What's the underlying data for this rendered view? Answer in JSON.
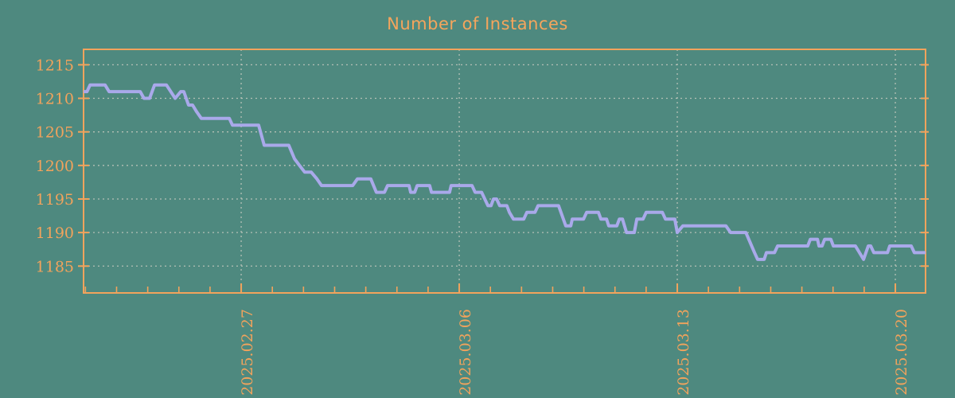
{
  "window": {
    "title": "Number of Instances"
  },
  "colors": {
    "background": "#4E897F",
    "accent_orange": "#F2A35C",
    "title_orange": "#F5A55C",
    "series_line": "#A9A9EA",
    "gridline": "#C6CABF"
  },
  "chart_data": {
    "type": "line",
    "title": "Number of Instances",
    "xlabel": "",
    "ylabel": "",
    "x_unit": "days relative to 2025.02.27 tick",
    "xlim": [
      -5.06,
      21.97
    ],
    "ylim": [
      1181.0,
      1217.3
    ],
    "grid": true,
    "legend_position": "none",
    "y_ticks": [
      1185,
      1190,
      1195,
      1200,
      1205,
      1210,
      1215
    ],
    "x_major_ticks": [
      {
        "day": 0,
        "label": "2025.02.27"
      },
      {
        "day": 7,
        "label": "2025.03.06"
      },
      {
        "day": 14,
        "label": "2025.03.13"
      },
      {
        "day": 21,
        "label": "2025.03.20"
      }
    ],
    "x_minor_tick_every_days": 1,
    "series": [
      {
        "name": "instances",
        "points": [
          [
            -5.06,
            1211
          ],
          [
            -4.95,
            1211
          ],
          [
            -4.85,
            1212
          ],
          [
            -4.37,
            1212
          ],
          [
            -4.24,
            1211
          ],
          [
            -3.24,
            1211
          ],
          [
            -3.12,
            1210
          ],
          [
            -2.94,
            1210
          ],
          [
            -2.78,
            1212
          ],
          [
            -2.4,
            1212
          ],
          [
            -2.12,
            1210
          ],
          [
            -1.94,
            1211
          ],
          [
            -1.84,
            1211
          ],
          [
            -1.69,
            1209
          ],
          [
            -1.56,
            1209
          ],
          [
            -1.43,
            1208
          ],
          [
            -1.28,
            1207
          ],
          [
            -0.38,
            1207
          ],
          [
            -0.28,
            1206
          ],
          [
            0.56,
            1206
          ],
          [
            0.74,
            1203
          ],
          [
            1.53,
            1203
          ],
          [
            1.71,
            1201
          ],
          [
            1.87,
            1200
          ],
          [
            2.04,
            1199
          ],
          [
            2.25,
            1199
          ],
          [
            2.43,
            1198
          ],
          [
            2.58,
            1197
          ],
          [
            3.58,
            1197
          ],
          [
            3.73,
            1198
          ],
          [
            4.16,
            1198
          ],
          [
            4.34,
            1196
          ],
          [
            4.6,
            1196
          ],
          [
            4.7,
            1197
          ],
          [
            5.39,
            1197
          ],
          [
            5.44,
            1196
          ],
          [
            5.57,
            1196
          ],
          [
            5.65,
            1197
          ],
          [
            6.05,
            1197
          ],
          [
            6.11,
            1196
          ],
          [
            6.69,
            1196
          ],
          [
            6.74,
            1197
          ],
          [
            7.41,
            1197
          ],
          [
            7.51,
            1196
          ],
          [
            7.72,
            1196
          ],
          [
            7.92,
            1194
          ],
          [
            8.02,
            1194
          ],
          [
            8.1,
            1195
          ],
          [
            8.2,
            1195
          ],
          [
            8.3,
            1194
          ],
          [
            8.53,
            1194
          ],
          [
            8.61,
            1193
          ],
          [
            8.74,
            1192
          ],
          [
            9.07,
            1192
          ],
          [
            9.17,
            1193
          ],
          [
            9.43,
            1193
          ],
          [
            9.53,
            1194
          ],
          [
            10.19,
            1194
          ],
          [
            10.42,
            1191
          ],
          [
            10.58,
            1191
          ],
          [
            10.63,
            1192
          ],
          [
            10.99,
            1192
          ],
          [
            11.09,
            1193
          ],
          [
            11.47,
            1193
          ],
          [
            11.55,
            1192
          ],
          [
            11.73,
            1192
          ],
          [
            11.8,
            1191
          ],
          [
            12.06,
            1191
          ],
          [
            12.14,
            1192
          ],
          [
            12.24,
            1192
          ],
          [
            12.37,
            1190
          ],
          [
            12.62,
            1190
          ],
          [
            12.7,
            1192
          ],
          [
            12.9,
            1192
          ],
          [
            13.0,
            1193
          ],
          [
            13.52,
            1193
          ],
          [
            13.62,
            1192
          ],
          [
            13.92,
            1192
          ],
          [
            14.0,
            1190
          ],
          [
            14.18,
            1191
          ],
          [
            15.56,
            1191
          ],
          [
            15.71,
            1190
          ],
          [
            16.2,
            1190
          ],
          [
            16.48,
            1187
          ],
          [
            16.58,
            1186
          ],
          [
            16.79,
            1186
          ],
          [
            16.86,
            1187
          ],
          [
            17.12,
            1187
          ],
          [
            17.22,
            1188
          ],
          [
            18.19,
            1188
          ],
          [
            18.27,
            1189
          ],
          [
            18.5,
            1189
          ],
          [
            18.55,
            1188
          ],
          [
            18.65,
            1188
          ],
          [
            18.73,
            1189
          ],
          [
            18.93,
            1189
          ],
          [
            19.01,
            1188
          ],
          [
            19.72,
            1188
          ],
          [
            19.98,
            1186
          ],
          [
            20.13,
            1188
          ],
          [
            20.21,
            1188
          ],
          [
            20.31,
            1187
          ],
          [
            20.75,
            1187
          ],
          [
            20.82,
            1188
          ],
          [
            21.51,
            1188
          ],
          [
            21.61,
            1187
          ],
          [
            21.97,
            1187
          ]
        ]
      }
    ]
  }
}
